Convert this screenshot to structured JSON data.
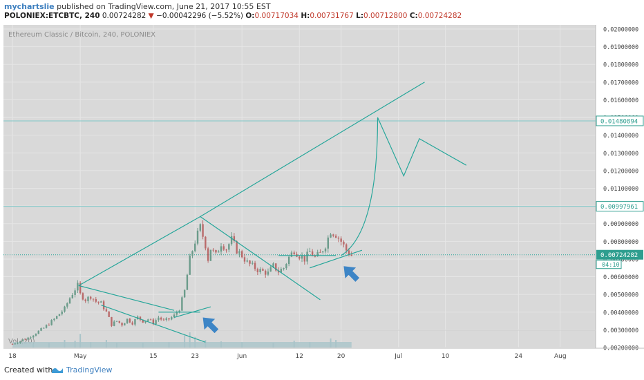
{
  "header": {
    "author": "mychartslie",
    "published_text": "published on TradingView.com, June 21, 2017 10:55 EST",
    "symbol": "POLONIEX:ETCBTC, 240",
    "last": "0.00724282",
    "change_arrow": "▼",
    "change": "−0.00042296 (−5.52%)",
    "o_label": "O:",
    "o_value": "0.00717034",
    "h_label": "H:",
    "h_value": "0.00731767",
    "l_label": "L:",
    "l_value": "0.00712800",
    "c_label": "C:",
    "c_value": "0.00724282"
  },
  "footer": {
    "created_with": "Created with",
    "brand": "TradingView",
    "icon": "tradingview-logo-icon"
  },
  "chart_data": {
    "type": "candlestick",
    "title": "Ethereum Classic / Bitcoin, 240, POLONIEX",
    "volume_label": "Vol (20)",
    "ylim": [
      0.0015,
      0.0205
    ],
    "y_ticks": [
      "0.02000000",
      "0.01900000",
      "0.01800000",
      "0.01700000",
      "0.01600000",
      "0.01500000",
      "0.01400000",
      "0.01300000",
      "0.01200000",
      "0.01100000",
      "0.01000000",
      "0.00900000",
      "0.00800000",
      "0.00700000",
      "0.00600000",
      "0.00500000",
      "0.00400000",
      "0.00300000",
      "0.00200000"
    ],
    "x_ticks": [
      {
        "label": "18",
        "day": 0
      },
      {
        "label": "May",
        "day": 13
      },
      {
        "label": "15",
        "day": 27
      },
      {
        "label": "23",
        "day": 35
      },
      {
        "label": "Jun",
        "day": 44
      },
      {
        "label": "12",
        "day": 55
      },
      {
        "label": "20",
        "day": 63
      },
      {
        "label": "Jul",
        "day": 74
      },
      {
        "label": "10",
        "day": 83
      },
      {
        "label": "24",
        "day": 97
      },
      {
        "label": "Aug",
        "day": 105
      }
    ],
    "price_labels": [
      {
        "value": 0.01480894,
        "text": "0.01480894",
        "style": "outline"
      },
      {
        "value": 0.00997961,
        "text": "0.00997961",
        "style": "outline"
      },
      {
        "value": 0.00724282,
        "text": "0.00724282",
        "style": "current",
        "timer": "04:10"
      }
    ],
    "horizontal_lines": [
      0.01480894,
      0.00997961
    ],
    "last_price": 0.00724282,
    "price_path": [
      [
        0,
        0.0022
      ],
      [
        3,
        0.00255
      ],
      [
        6,
        0.0031
      ],
      [
        8,
        0.0036
      ],
      [
        10,
        0.0042
      ],
      [
        11,
        0.0048
      ],
      [
        12,
        0.0053
      ],
      [
        12.5,
        0.0055
      ],
      [
        13,
        0.005
      ],
      [
        14,
        0.0047
      ],
      [
        15,
        0.0049
      ],
      [
        16,
        0.0046
      ],
      [
        17,
        0.0045
      ],
      [
        18,
        0.004
      ],
      [
        19,
        0.0033
      ],
      [
        20,
        0.0035
      ],
      [
        21,
        0.0033
      ],
      [
        22,
        0.0036
      ],
      [
        23,
        0.0034
      ],
      [
        24,
        0.0037
      ],
      [
        25,
        0.0035
      ],
      [
        26,
        0.0036
      ],
      [
        27,
        0.0034
      ],
      [
        28,
        0.0037
      ],
      [
        29,
        0.0035
      ],
      [
        30,
        0.0036
      ],
      [
        31,
        0.0038
      ],
      [
        32,
        0.0042
      ],
      [
        33,
        0.0052
      ],
      [
        34,
        0.007
      ],
      [
        35,
        0.008
      ],
      [
        36,
        0.0088
      ],
      [
        37,
        0.0078
      ],
      [
        37.5,
        0.007
      ],
      [
        38,
        0.0076
      ],
      [
        39,
        0.0072
      ],
      [
        40,
        0.0079
      ],
      [
        41,
        0.0076
      ],
      [
        42,
        0.0081
      ],
      [
        43,
        0.0075
      ],
      [
        44,
        0.0072
      ],
      [
        45,
        0.0068
      ],
      [
        46,
        0.0066
      ],
      [
        47,
        0.0064
      ],
      [
        48,
        0.0063
      ],
      [
        49,
        0.0062
      ],
      [
        50,
        0.0066
      ],
      [
        51,
        0.0063
      ],
      [
        52,
        0.0065
      ],
      [
        53,
        0.0071
      ],
      [
        54,
        0.0075
      ],
      [
        55,
        0.0072
      ],
      [
        56,
        0.007
      ],
      [
        57,
        0.0074
      ],
      [
        58,
        0.0071
      ],
      [
        59,
        0.0073
      ],
      [
        60,
        0.0078
      ],
      [
        61,
        0.0086
      ],
      [
        62,
        0.0084
      ],
      [
        63,
        0.008
      ],
      [
        64,
        0.0075
      ],
      [
        65,
        0.0072
      ]
    ],
    "volume_spikes": [
      [
        4,
        0.25
      ],
      [
        7,
        0.3
      ],
      [
        10,
        0.5
      ],
      [
        12,
        0.45
      ],
      [
        13,
        0.9
      ],
      [
        15,
        0.35
      ],
      [
        18,
        0.5
      ],
      [
        20,
        0.3
      ],
      [
        25,
        0.3
      ],
      [
        30,
        0.35
      ],
      [
        33,
        0.8
      ],
      [
        34,
        1.0
      ],
      [
        35,
        0.7
      ],
      [
        37,
        0.5
      ],
      [
        40,
        0.4
      ],
      [
        44,
        0.35
      ],
      [
        50,
        0.3
      ],
      [
        54,
        0.45
      ],
      [
        57,
        0.35
      ],
      [
        61,
        0.6
      ],
      [
        62,
        0.5
      ]
    ],
    "trendlines": [
      {
        "name": "rising-resistance",
        "points": [
          [
            12.7,
            0.0055
          ],
          [
            36,
            0.0094
          ],
          [
            79,
            0.017
          ]
        ]
      },
      {
        "name": "wedge-upper-1",
        "points": [
          [
            12.7,
            0.0055
          ],
          [
            31,
            0.0041
          ]
        ]
      },
      {
        "name": "wedge-lower-1",
        "points": [
          [
            17,
            0.0044
          ],
          [
            37,
            0.0023
          ]
        ]
      },
      {
        "name": "flag-1a",
        "points": [
          [
            28,
            0.004
          ],
          [
            36,
            0.004
          ]
        ]
      },
      {
        "name": "flag-1b",
        "points": [
          [
            31,
            0.0037
          ],
          [
            38,
            0.0043
          ]
        ]
      },
      {
        "name": "wedge-upper-2",
        "points": [
          [
            36,
            0.0094
          ],
          [
            59,
            0.0047
          ]
        ]
      },
      {
        "name": "flag-2a",
        "points": [
          [
            51,
            0.0072
          ],
          [
            62,
            0.0072
          ]
        ]
      },
      {
        "name": "flag-2b",
        "points": [
          [
            57,
            0.0065
          ],
          [
            67,
            0.0075
          ]
        ]
      }
    ],
    "projection": {
      "start": [
        63,
        0.0072
      ],
      "curve_control": [
        70,
        0.0085
      ],
      "peak": [
        70,
        0.015
      ],
      "path_after": [
        [
          75,
          0.0117
        ],
        [
          78,
          0.0138
        ],
        [
          87,
          0.0123
        ]
      ]
    },
    "arrows": [
      {
        "name": "blue-arrow-1",
        "tip": [
          36.5,
          0.0037
        ],
        "color": "#3d85c6"
      },
      {
        "name": "blue-arrow-2",
        "tip": [
          63.5,
          0.0066
        ],
        "color": "#3d85c6"
      }
    ],
    "colors": {
      "background": "#d9d9d9",
      "grid": "#e6e6e6",
      "trendline": "#26a69a",
      "horizontal_line": "#7ec8c8",
      "candle_up": "#6b9b8a",
      "candle_down": "#b96a6a",
      "volume": "#a9c4c9",
      "arrow": "#3d85c6",
      "axis_text": "#444444"
    }
  }
}
